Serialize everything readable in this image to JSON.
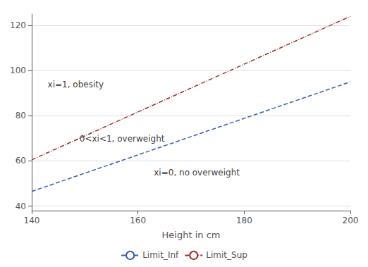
{
  "chart_data": {
    "type": "line",
    "xlabel": "Height in cm",
    "x": [
      140,
      200
    ],
    "series": [
      {
        "name": "Limit_Inf",
        "color": "#3a5faa",
        "values": [
          46.5,
          95.0
        ],
        "line_style": "dashed"
      },
      {
        "name": "Limit_Sup",
        "color": "#963030",
        "values": [
          60.5,
          124.0
        ],
        "line_style": "dashdot"
      }
    ],
    "xlim": [
      140,
      200
    ],
    "ylim": [
      38,
      125
    ],
    "xticks": [
      140,
      160,
      180,
      200
    ],
    "yticks": [
      40,
      60,
      80,
      100,
      120
    ],
    "grid": "y",
    "legend": "bottom",
    "annotations": [
      {
        "text": "xi=1, obesity",
        "x": 143,
        "y": 92
      },
      {
        "text": "0<xi<1, overweight",
        "x": 149,
        "y": 68
      },
      {
        "text": "xi=0, no overweight",
        "x": 163,
        "y": 53
      }
    ]
  }
}
